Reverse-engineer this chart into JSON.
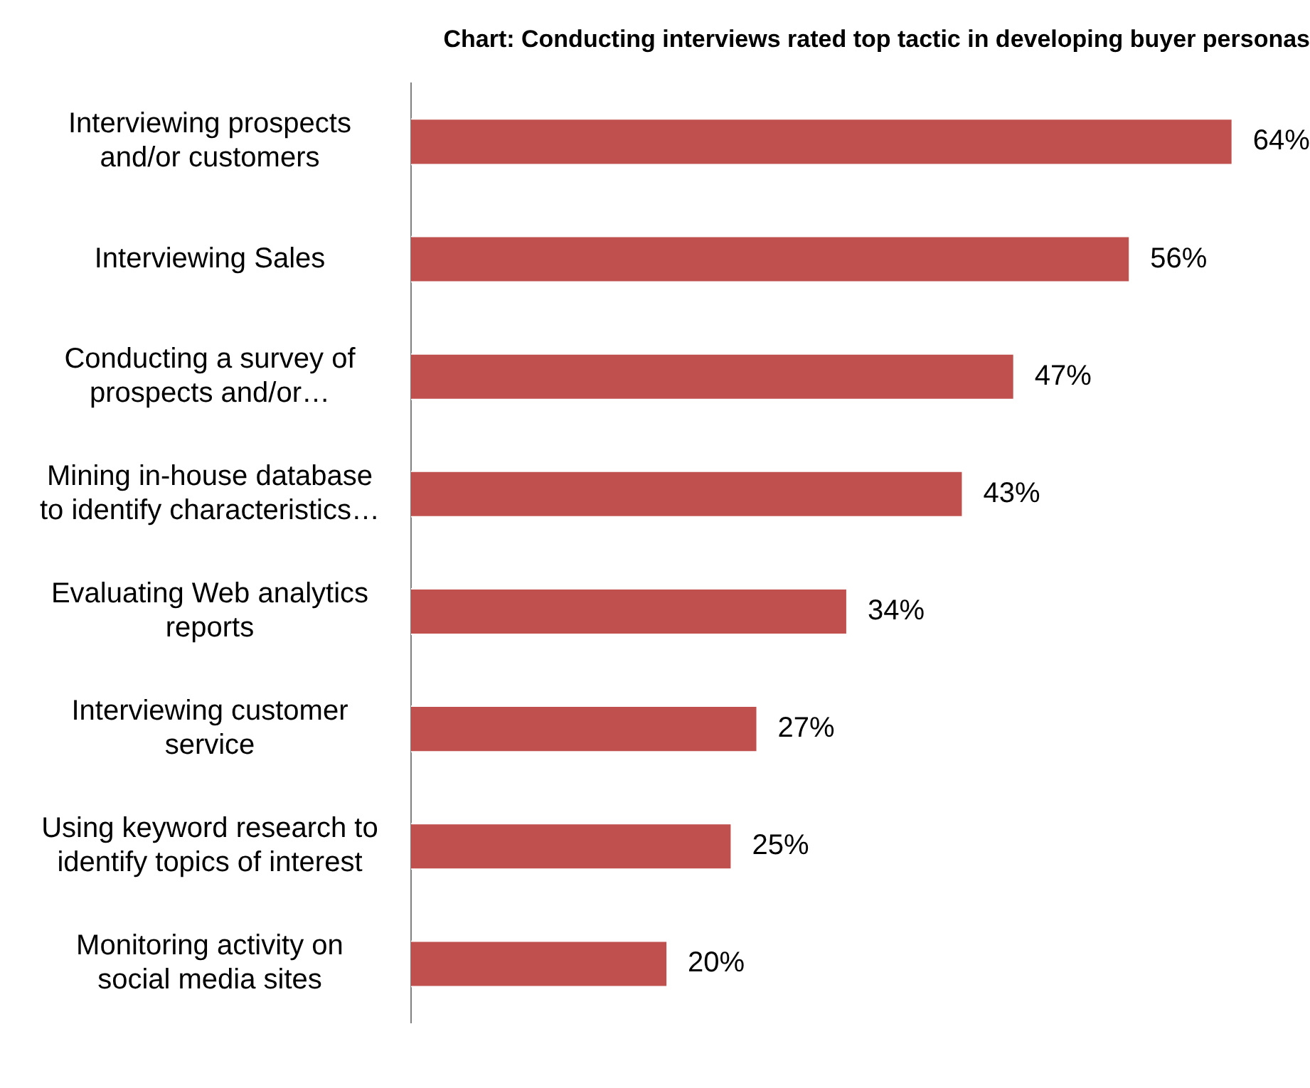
{
  "chart_data": {
    "type": "bar",
    "orientation": "horizontal",
    "title": "Chart: Conducting interviews rated top tactic in developing buyer personas",
    "categories": [
      "Interviewing prospects\nand/or customers",
      "Interviewing Sales",
      "Conducting a survey of\nprospects and/or…",
      "Mining in-house database\nto identify characteristics…",
      "Evaluating Web analytics\nreports",
      "Interviewing customer\nservice",
      "Using keyword research to\nidentify topics of interest",
      "Monitoring activity on\nsocial media sites"
    ],
    "values": [
      64,
      56,
      47,
      43,
      34,
      27,
      25,
      20
    ],
    "value_labels": [
      "64%",
      "56%",
      "47%",
      "43%",
      "34%",
      "27%",
      "25%",
      "20%"
    ],
    "color": "#c0504d"
  }
}
